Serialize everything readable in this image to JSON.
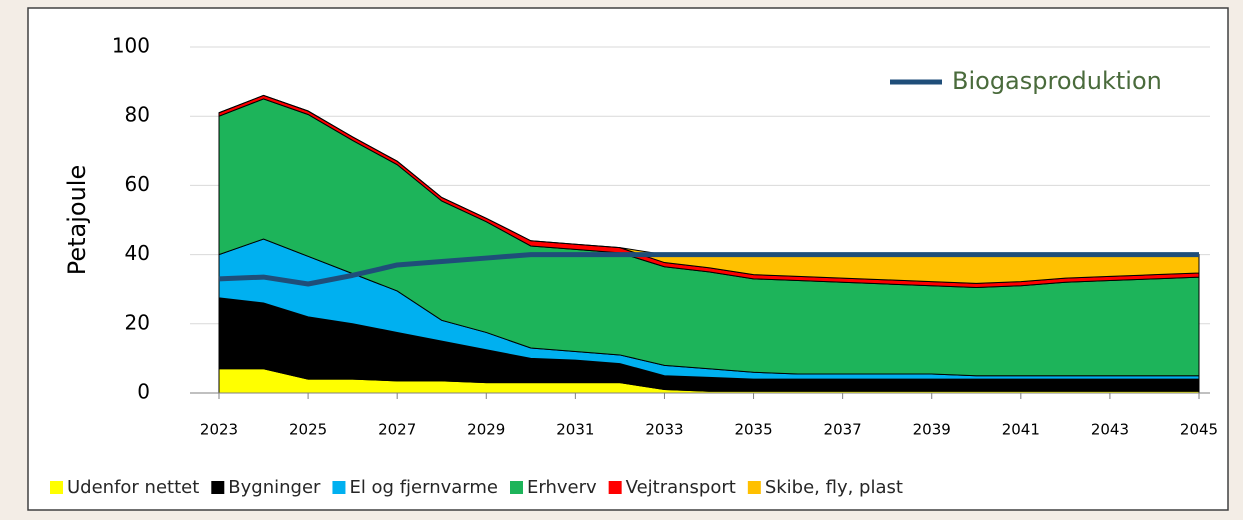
{
  "chart_data": {
    "type": "area",
    "stacked": true,
    "y_label": "Petajoule",
    "x": [
      2023,
      2024,
      2025,
      2026,
      2027,
      2028,
      2029,
      2030,
      2031,
      2032,
      2033,
      2034,
      2035,
      2036,
      2037,
      2038,
      2039,
      2040,
      2041,
      2042,
      2043,
      2044,
      2045
    ],
    "xlim": [
      2023,
      2045
    ],
    "xticks": [
      2023,
      2025,
      2027,
      2029,
      2031,
      2033,
      2035,
      2037,
      2039,
      2041,
      2043,
      2045
    ],
    "ylim": [
      0,
      100
    ],
    "yticks": [
      0,
      20,
      40,
      60,
      80,
      100
    ],
    "grid": true,
    "series": [
      {
        "name": "Udenfor nettet",
        "color": "#ffff00",
        "values": [
          7,
          7,
          4,
          4,
          3.5,
          3.5,
          3,
          3,
          3,
          3,
          1,
          0.5,
          0.5,
          0.5,
          0.5,
          0.5,
          0.5,
          0.5,
          0.5,
          0.5,
          0.5,
          0.5,
          0.5
        ]
      },
      {
        "name": "Bygninger",
        "color": "#000000",
        "values": [
          20.5,
          19,
          18,
          16,
          14,
          11.5,
          9.5,
          7,
          6.5,
          5.5,
          4,
          4,
          3.5,
          3.5,
          3.5,
          3.5,
          3.5,
          3.5,
          3.5,
          3.5,
          3.5,
          3.5,
          3.5
        ]
      },
      {
        "name": "El og fjernvarme",
        "color": "#00b0f0",
        "values": [
          12.5,
          18.5,
          17.5,
          14.5,
          12,
          6,
          5,
          3,
          2.5,
          2.5,
          3,
          2.5,
          2,
          1.5,
          1.5,
          1.5,
          1.5,
          1,
          1,
          1,
          1,
          1,
          1
        ]
      },
      {
        "name": "Erhverv",
        "color": "#1db45a",
        "values": [
          40,
          40.5,
          41,
          38.5,
          36.5,
          34.5,
          32,
          29.5,
          29.5,
          29.5,
          28.5,
          28,
          27,
          27,
          26.5,
          26,
          25.5,
          25.5,
          26,
          27,
          27.5,
          28,
          28.5
        ]
      },
      {
        "name": "Vejtransport",
        "color": "#ff0000",
        "values": [
          1,
          1,
          1,
          1,
          1,
          1,
          1,
          1.5,
          1.5,
          1.5,
          1.2,
          1.2,
          1.2,
          1.2,
          1.2,
          1.2,
          1.2,
          1.2,
          1.2,
          1.2,
          1.2,
          1.2,
          1.2
        ]
      },
      {
        "name": "Skibe, fly, plast",
        "color": "#ffc000",
        "values": [
          0,
          0,
          0,
          0,
          0,
          0,
          0,
          0,
          0,
          0,
          2.3,
          3.8,
          5.8,
          6.3,
          6.8,
          7.3,
          7.8,
          8.3,
          7.8,
          6.8,
          6.3,
          5.8,
          5.3
        ]
      }
    ],
    "line_series": {
      "name": "Biogasproduktion",
      "color": "#1f4e79",
      "values": [
        33,
        33.5,
        31.5,
        34,
        37,
        38,
        39,
        40,
        40,
        40,
        40,
        40,
        40,
        40,
        40,
        40,
        40,
        40,
        40,
        40,
        40,
        40,
        40
      ]
    }
  }
}
